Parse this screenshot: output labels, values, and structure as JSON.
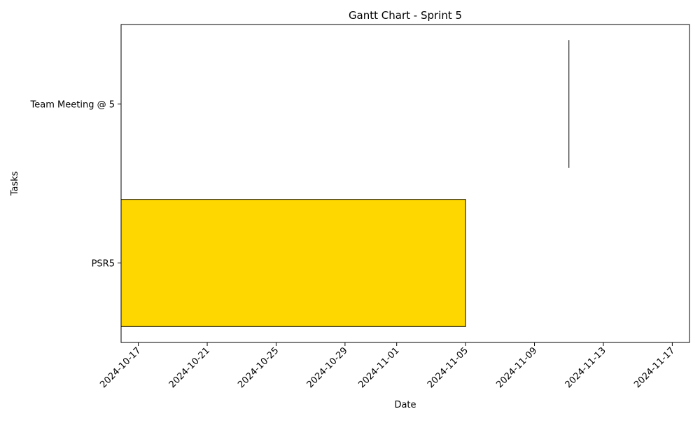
{
  "chart_data": {
    "type": "gantt",
    "title": "Gantt Chart - Sprint 5",
    "xlabel": "Date",
    "ylabel": "Tasks",
    "x_axis_type": "date",
    "xlim": [
      "2024-10-16",
      "2024-11-18"
    ],
    "xticks": [
      "2024-10-17",
      "2024-10-21",
      "2024-10-25",
      "2024-10-29",
      "2024-11-01",
      "2024-11-05",
      "2024-11-09",
      "2024-11-13",
      "2024-11-17"
    ],
    "tasks": [
      {
        "name": "PSR5",
        "start": "2024-10-16",
        "end": "2024-11-05",
        "color": "#ffd700"
      },
      {
        "name": "Team Meeting @ 5",
        "start": "2024-11-11",
        "end": "2024-11-11",
        "color": "#ffd700"
      },
      {
        "name": "Team Meeting @ 5",
        "start": "2024-11-18",
        "end": "2024-11-18",
        "color": "#ffd700"
      }
    ],
    "categories": [
      "PSR5",
      "Team Meeting @ 5"
    ],
    "grid": false,
    "legend": "none"
  }
}
